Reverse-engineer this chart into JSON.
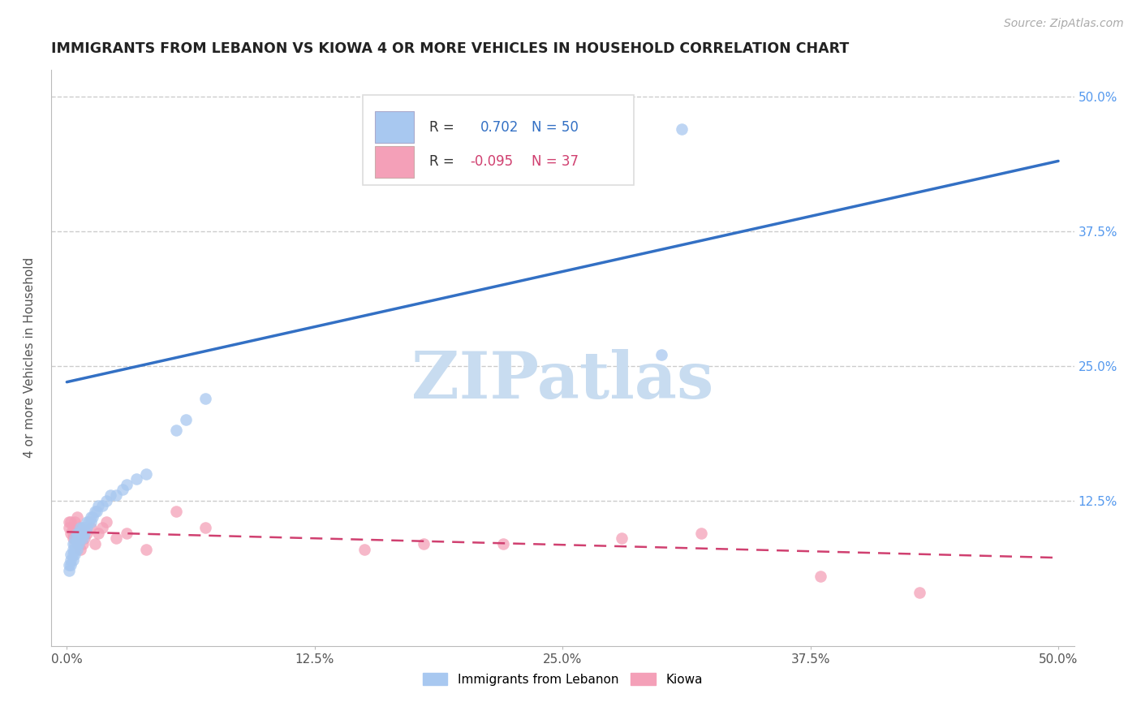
{
  "title": "IMMIGRANTS FROM LEBANON VS KIOWA 4 OR MORE VEHICLES IN HOUSEHOLD CORRELATION CHART",
  "source_text": "Source: ZipAtlas.com",
  "ylabel": "4 or more Vehicles in Household",
  "xlim": [
    0.0,
    0.5
  ],
  "ylim": [
    0.0,
    0.52
  ],
  "xtick_values": [
    0.0,
    0.125,
    0.25,
    0.375,
    0.5
  ],
  "xtick_labels": [
    "0.0%",
    "12.5%",
    "25.0%",
    "37.5%",
    "50.0%"
  ],
  "ytick_values": [
    0.125,
    0.25,
    0.375,
    0.5
  ],
  "ytick_labels": [
    "12.5%",
    "25.0%",
    "37.5%",
    "50.0%"
  ],
  "legend_blue_label": "Immigrants from Lebanon",
  "legend_pink_label": "Kiowa",
  "blue_R": "0.702",
  "blue_N": "50",
  "pink_R": "-0.095",
  "pink_N": "37",
  "blue_dot_color": "#A8C8F0",
  "pink_dot_color": "#F4A0B8",
  "blue_line_color": "#3370C4",
  "pink_line_color": "#D04070",
  "watermark_color": "#C8DCF0",
  "watermark_text": "ZIPatlas",
  "blue_line_start_y": 0.235,
  "blue_line_end_y": 0.44,
  "pink_line_start_y": 0.096,
  "pink_line_end_y": 0.072,
  "blue_scatter_x": [
    0.001,
    0.001,
    0.002,
    0.002,
    0.002,
    0.003,
    0.003,
    0.003,
    0.003,
    0.004,
    0.004,
    0.004,
    0.004,
    0.005,
    0.005,
    0.005,
    0.005,
    0.006,
    0.006,
    0.006,
    0.007,
    0.007,
    0.007,
    0.008,
    0.008,
    0.008,
    0.009,
    0.009,
    0.01,
    0.01,
    0.011,
    0.012,
    0.012,
    0.013,
    0.014,
    0.015,
    0.016,
    0.018,
    0.02,
    0.022,
    0.025,
    0.028,
    0.03,
    0.035,
    0.04,
    0.055,
    0.06,
    0.07,
    0.3,
    0.31
  ],
  "blue_scatter_y": [
    0.06,
    0.065,
    0.065,
    0.07,
    0.075,
    0.07,
    0.075,
    0.08,
    0.085,
    0.075,
    0.08,
    0.085,
    0.09,
    0.08,
    0.085,
    0.09,
    0.095,
    0.085,
    0.09,
    0.095,
    0.09,
    0.095,
    0.1,
    0.09,
    0.095,
    0.1,
    0.095,
    0.1,
    0.1,
    0.105,
    0.105,
    0.105,
    0.11,
    0.11,
    0.115,
    0.115,
    0.12,
    0.12,
    0.125,
    0.13,
    0.13,
    0.135,
    0.14,
    0.145,
    0.15,
    0.19,
    0.2,
    0.22,
    0.26,
    0.47
  ],
  "pink_scatter_x": [
    0.001,
    0.001,
    0.002,
    0.002,
    0.003,
    0.003,
    0.003,
    0.004,
    0.004,
    0.004,
    0.005,
    0.005,
    0.005,
    0.006,
    0.006,
    0.007,
    0.007,
    0.008,
    0.009,
    0.01,
    0.012,
    0.014,
    0.016,
    0.018,
    0.02,
    0.025,
    0.03,
    0.04,
    0.055,
    0.07,
    0.15,
    0.18,
    0.22,
    0.28,
    0.32,
    0.38,
    0.43
  ],
  "pink_scatter_y": [
    0.1,
    0.105,
    0.095,
    0.105,
    0.09,
    0.095,
    0.1,
    0.09,
    0.095,
    0.105,
    0.085,
    0.09,
    0.11,
    0.085,
    0.095,
    0.08,
    0.1,
    0.085,
    0.09,
    0.095,
    0.1,
    0.085,
    0.095,
    0.1,
    0.105,
    0.09,
    0.095,
    0.08,
    0.115,
    0.1,
    0.08,
    0.085,
    0.085,
    0.09,
    0.095,
    0.055,
    0.04
  ]
}
